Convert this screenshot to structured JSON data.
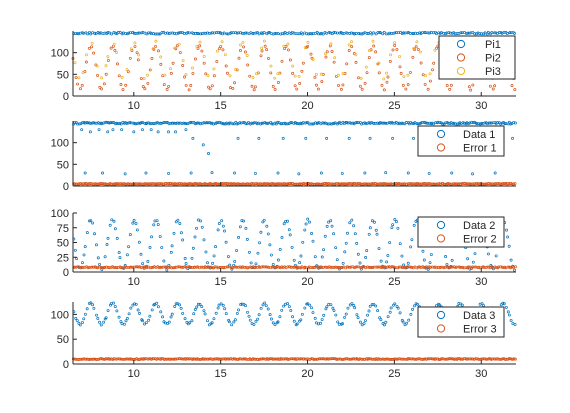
{
  "chart_data": [
    {
      "type": "scatter",
      "xlim": [
        6.5,
        32
      ],
      "ylim": [
        0,
        150
      ],
      "xticks": [
        10,
        15,
        20,
        25,
        30
      ],
      "yticks": [
        0,
        50,
        100
      ],
      "show_xtick_labels": true,
      "grid": false,
      "legend_position": "top-right",
      "series": [
        {
          "name": "Pi1",
          "color": "#0072BD",
          "pattern": "constant",
          "level": 145,
          "jitter": 2,
          "density": 10,
          "period": 1.25,
          "phase": 6.9
        },
        {
          "name": "Pi2",
          "color": "#D95319",
          "pattern": "wave",
          "min": 15,
          "max": 115,
          "period": 1.25,
          "phase": 6.9,
          "density": 8
        },
        {
          "name": "Pi3",
          "color": "#EDB120",
          "pattern": "wave",
          "min": 40,
          "max": 125,
          "period": 1.25,
          "phase": 6.9,
          "density": 4
        }
      ]
    },
    {
      "type": "scatter",
      "xlim": [
        6.5,
        32
      ],
      "ylim": [
        0,
        150
      ],
      "xticks": [
        10,
        15,
        20,
        25,
        30
      ],
      "yticks": [
        0,
        50,
        100
      ],
      "show_xtick_labels": false,
      "grid": false,
      "legend_position": "top-right",
      "series": [
        {
          "name": "Data 1",
          "color": "#0072BD",
          "pattern": "constant",
          "level": 145,
          "jitter": 2,
          "density": 12,
          "period": 1.25,
          "phase": 6.9
        },
        {
          "name": "Error 1",
          "color": "#D95319",
          "pattern": "constant",
          "level": 5,
          "jitter": 1,
          "density": 14,
          "period": 1.25,
          "phase": 6.9
        }
      ],
      "outliers": [
        {
          "x": [
            7.0,
            7.5,
            8.0,
            8.5,
            8.8,
            9.3,
            10.0,
            10.5,
            11.0,
            11.4,
            12.0,
            12.4,
            13.0,
            13.4,
            14.0,
            14.3,
            16.0,
            17.2,
            18.6,
            19.9,
            21.1,
            22.4,
            23.6,
            24.9,
            26.1,
            27.4,
            28.6,
            29.9,
            31.1,
            31.8
          ],
          "y": [
            130,
            125,
            130,
            125,
            130,
            130,
            125,
            130,
            130,
            125,
            125,
            125,
            130,
            110,
            95,
            75,
            110,
            110,
            110,
            110,
            110,
            110,
            110,
            110,
            110,
            110,
            110,
            110,
            110,
            110
          ]
        },
        {
          "x": [
            7.2,
            8.2,
            9.5,
            10.7,
            12.0,
            13.3,
            14.5,
            15.8,
            17.0,
            18.3,
            19.5,
            20.8,
            22.0,
            23.3,
            24.5,
            25.8,
            27.0,
            28.3,
            29.5,
            30.8
          ],
          "y": [
            30,
            30,
            28,
            30,
            29,
            30,
            31,
            30,
            29,
            30,
            28,
            30,
            29,
            30,
            31,
            30,
            29,
            30,
            28,
            30
          ]
        }
      ]
    },
    {
      "type": "scatter",
      "xlim": [
        6.5,
        32
      ],
      "ylim": [
        0,
        100
      ],
      "xticks": [
        10,
        15,
        20,
        25,
        30
      ],
      "yticks": [
        0,
        25,
        50,
        75,
        100
      ],
      "show_xtick_labels": true,
      "grid": false,
      "legend_position": "top-right",
      "series": [
        {
          "name": "Data 2",
          "color": "#0072BD",
          "pattern": "wave",
          "min": 5,
          "max": 88,
          "period": 1.25,
          "phase": 6.9,
          "density": 10
        },
        {
          "name": "Error 2",
          "color": "#D95319",
          "pattern": "constant",
          "level": 8,
          "jitter": 1,
          "density": 12,
          "period": 1.25,
          "phase": 6.9
        }
      ]
    },
    {
      "type": "scatter",
      "xlim": [
        6.5,
        32
      ],
      "ylim": [
        0,
        125
      ],
      "xticks": [
        10,
        15,
        20,
        25,
        30
      ],
      "yticks": [
        0,
        50,
        100
      ],
      "show_xtick_labels": true,
      "grid": false,
      "legend_position": "top-right",
      "series": [
        {
          "name": "Data 3",
          "color": "#0072BD",
          "pattern": "wave",
          "min": 80,
          "max": 122,
          "period": 1.25,
          "phase": 6.9,
          "density": 10
        },
        {
          "name": "Error 3",
          "color": "#D95319",
          "pattern": "constant",
          "level": 10,
          "jitter": 1,
          "density": 14,
          "period": 1.25,
          "phase": 6.9
        }
      ]
    }
  ]
}
